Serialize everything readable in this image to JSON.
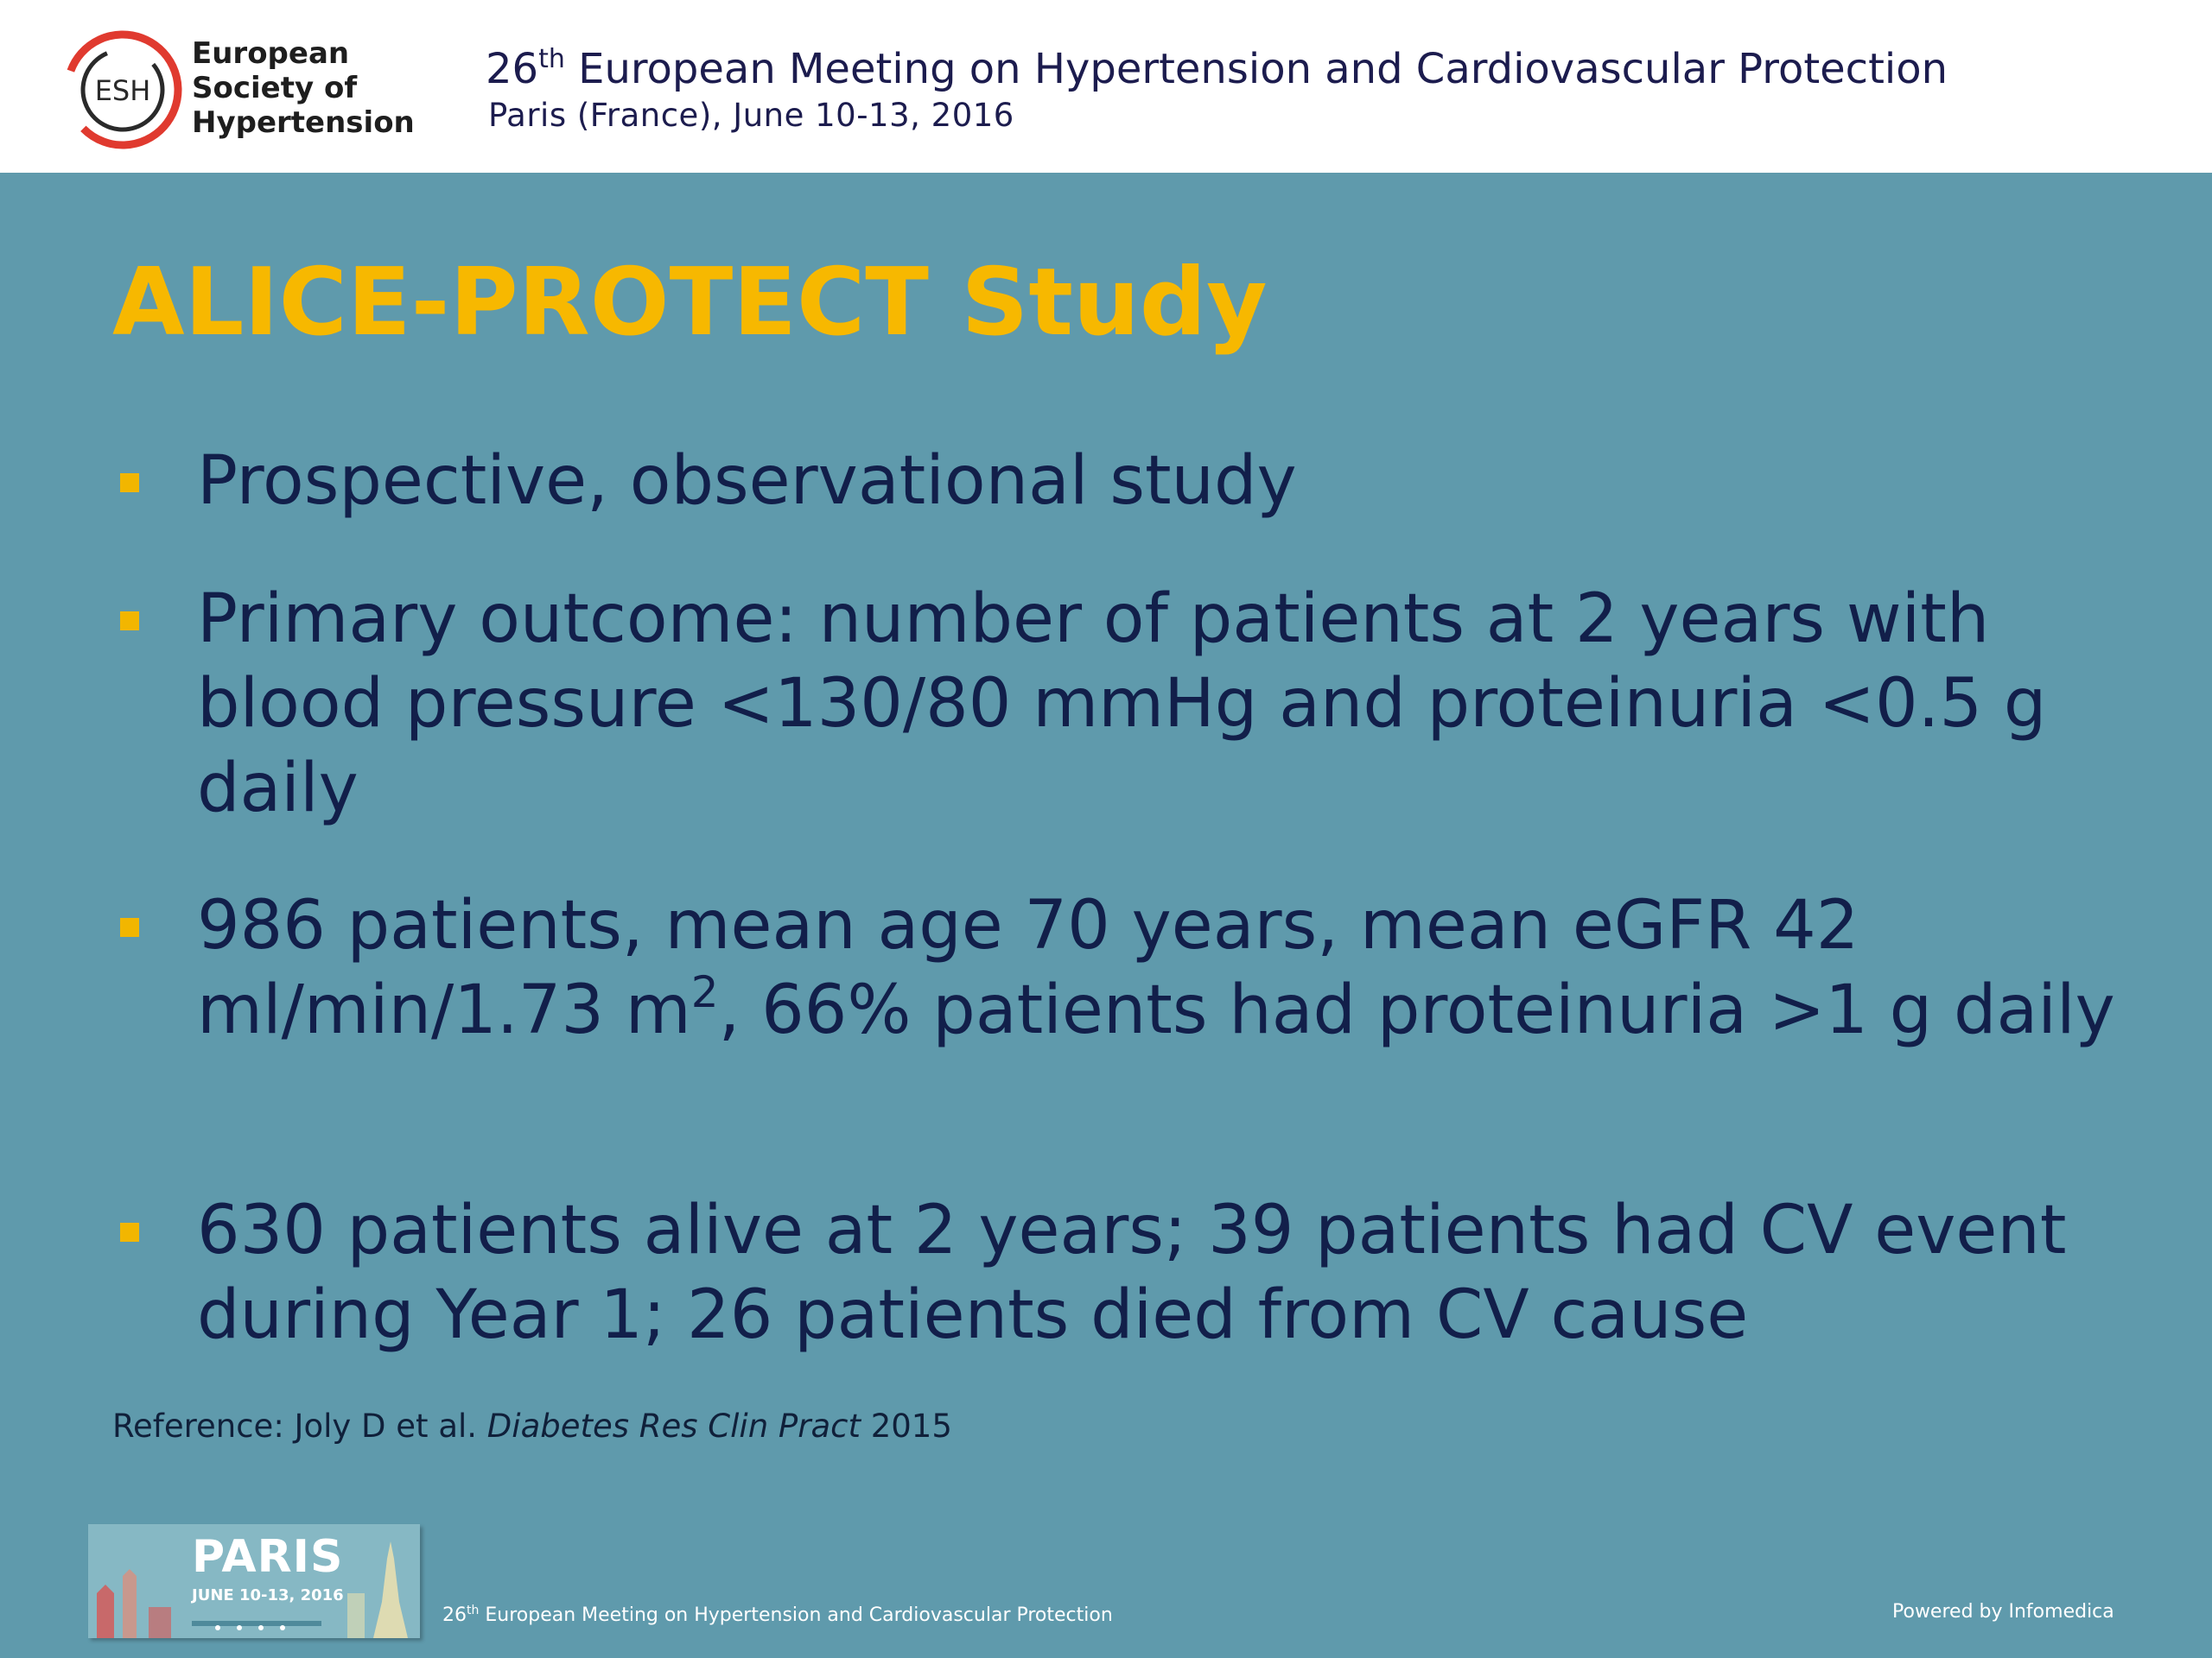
{
  "header": {
    "logo": {
      "abbr": "ESH",
      "name_lines": [
        "European",
        "Society of",
        "Hypertension"
      ]
    },
    "meeting": {
      "ordinal_number": "26",
      "ordinal_suffix": "th",
      "title": "European Meeting on Hypertension and Cardiovascular Protection",
      "subtitle": "Paris (France), June 10-13, 2016"
    }
  },
  "slide": {
    "title": "ALICE-PROTECT Study",
    "bullets": [
      {
        "text": "Prospective, observational study"
      },
      {
        "text": "Primary outcome: number of patients at 2 years with blood pressure <130/80 mmHg and proteinuria <0.5 g daily"
      },
      {
        "text_before_sup": "986 patients, mean age 70 years, mean eGFR 42 ml/min/1.73 m",
        "sup": "2",
        "text_after_sup": ", 66% patients had proteinuria >1 g daily"
      },
      {
        "text": "630 patients alive at 2 years; 39 patients had CV event during Year 1; 26 patients died from CV cause"
      }
    ],
    "reference": {
      "prefix": "Reference: Joly D et al. ",
      "journal": "Diabetes Res Clin Pract",
      "year": " 2015"
    }
  },
  "footer": {
    "badge_city": "PARIS",
    "badge_date": "JUNE 10-13, 2016",
    "meeting_number": "26",
    "meeting_suffix": "th",
    "meeting_title": " European Meeting on Hypertension and Cardiovascular Protection",
    "powered_by": "Powered by Infomedica"
  },
  "colors": {
    "background": "#5f9aac",
    "title": "#f7b800",
    "bullet_marker": "#f2b600",
    "body_text": "#121f4a",
    "logo_ring": "#e03a2f"
  }
}
